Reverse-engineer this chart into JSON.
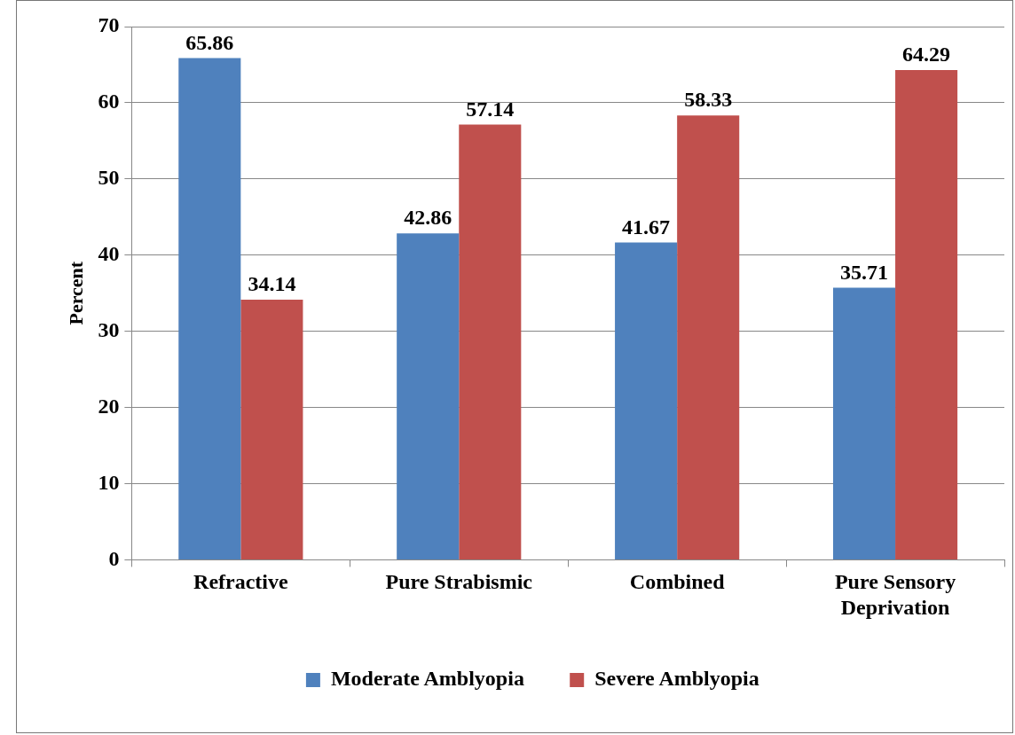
{
  "chart_data": {
    "type": "bar",
    "ylabel": "Percent",
    "categories": [
      "Refractive",
      "Pure Strabismic",
      "Combined",
      "Pure Sensory Deprivation"
    ],
    "series": [
      {
        "name": "Moderate Amblyopia",
        "color": "#4f81bd",
        "values": [
          65.86,
          42.86,
          41.67,
          35.71
        ]
      },
      {
        "name": "Severe Amblyopia",
        "color": "#c0504d",
        "values": [
          34.14,
          57.14,
          58.33,
          64.29
        ]
      }
    ],
    "ylim": [
      0,
      70
    ],
    "yticks": [
      0,
      10,
      20,
      30,
      40,
      50,
      60,
      70
    ],
    "grid": "y",
    "legend": "bottom",
    "data_labels": true
  }
}
